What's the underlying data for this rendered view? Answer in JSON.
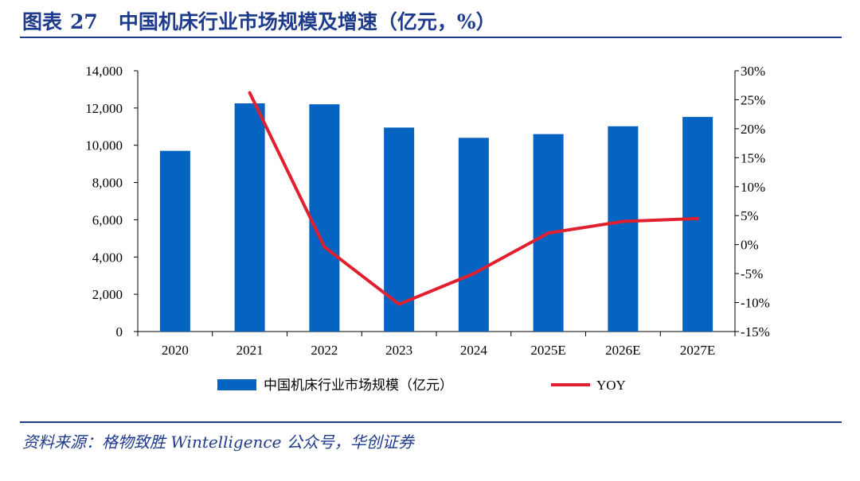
{
  "header": {
    "prefix": "图表",
    "number": "27",
    "title": "中国机床行业市场规模及增速（亿元，%）"
  },
  "footer": {
    "source": "资料来源：格物致胜 Wintelligence 公众号，华创证券"
  },
  "colors": {
    "bar": "#0563c1",
    "line": "#e0202e",
    "title": "#1f3b8c"
  },
  "chart_data": {
    "type": "bar",
    "categories": [
      "2020",
      "2021",
      "2022",
      "2023",
      "2024",
      "2025E",
      "2026E",
      "2027E"
    ],
    "series": [
      {
        "name": "中国机床行业市场规模（亿元）",
        "type": "bar",
        "axis": "left",
        "values": [
          9700,
          12250,
          12200,
          10950,
          10400,
          10600,
          11020,
          11520
        ]
      },
      {
        "name": "YOY",
        "type": "line",
        "axis": "right",
        "values": [
          null,
          26.2,
          -0.4,
          -10.3,
          -5.0,
          2.0,
          4.0,
          4.5
        ]
      }
    ],
    "yaxis_left": {
      "min": 0,
      "max": 14000,
      "ticks": [
        "0",
        "2,000",
        "4,000",
        "6,000",
        "8,000",
        "10,000",
        "12,000",
        "14,000"
      ]
    },
    "yaxis_right": {
      "min": -15,
      "max": 30,
      "ticks": [
        "-15%",
        "-10%",
        "-5%",
        "0%",
        "5%",
        "10%",
        "15%",
        "20%",
        "25%",
        "30%"
      ]
    },
    "legend_position": "bottom",
    "grid": false
  }
}
